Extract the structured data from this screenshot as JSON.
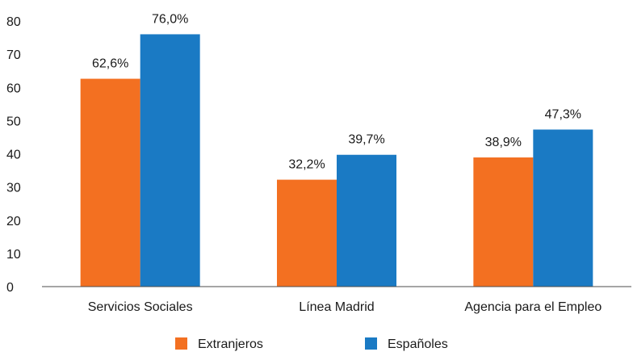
{
  "chart_data": {
    "type": "bar",
    "title": "",
    "xlabel": "",
    "ylabel": "",
    "categories": [
      "Servicios Sociales",
      "Línea Madrid",
      "Agencia para el Empleo"
    ],
    "series": [
      {
        "name": "Extranjeros",
        "color": "#f37021",
        "values": [
          62.6,
          32.2,
          38.9
        ],
        "labels": [
          "62,6%",
          "32,2%",
          "38,9%"
        ]
      },
      {
        "name": "Españoles",
        "color": "#1a7ac4",
        "values": [
          76.0,
          39.7,
          47.3
        ],
        "labels": [
          "76,0%",
          "39,7%",
          "47,3%"
        ]
      }
    ],
    "ylim": [
      0,
      80
    ],
    "yticks": [
      0,
      10,
      20,
      30,
      40,
      50,
      60,
      70,
      80
    ],
    "grid": false,
    "legend": "bottom"
  }
}
